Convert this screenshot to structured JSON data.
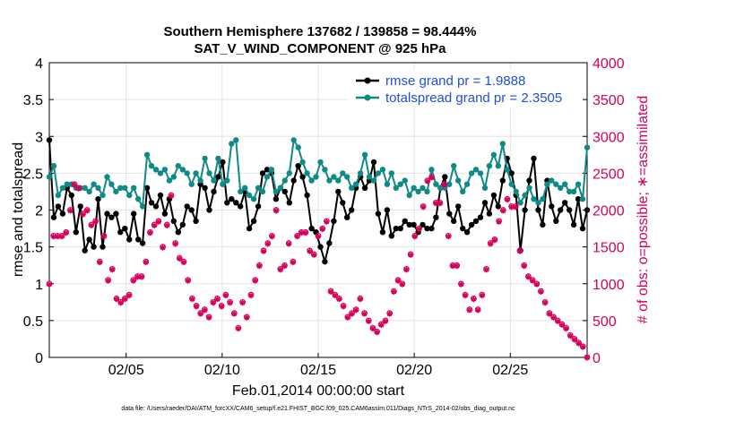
{
  "chart_data": {
    "type": "line",
    "title": "Southern Hemisphere 137682 / 139858 = 98.444%",
    "subtitle": "SAT_V_WIND_COMPONENT @ 925 hPa",
    "xlabel": "Feb.01,2014 00:00:00 start",
    "ylabel": "rmse and totalspread",
    "ylabel_right": "# of obs: o=possible; ∗=assimilated",
    "footnote": "data file: /Users/raeder/DAI/ATM_forcXX/CAM6_setup/f.e21.FHIST_BGC.f09_025.CAM6assim.011/Diags_NTrS_2014-02/obs_diag_output.nc",
    "xlim": [
      1.0,
      29.0
    ],
    "ylim": [
      0,
      4
    ],
    "ylim_right": [
      0,
      4000
    ],
    "x_ticks": [
      5,
      10,
      15,
      20,
      25
    ],
    "x_tick_labels": [
      "02/05",
      "02/10",
      "02/15",
      "02/20",
      "02/25"
    ],
    "y_ticks": [
      0,
      0.5,
      1,
      1.5,
      2,
      2.5,
      3,
      3.5,
      4
    ],
    "y_tick_labels": [
      "0",
      "0.5",
      "1",
      "1.5",
      "2",
      "2.5",
      "3",
      "3.5",
      "4"
    ],
    "y_ticks_right": [
      0,
      500,
      1000,
      1500,
      2000,
      2500,
      3000,
      3500,
      4000
    ],
    "y_tick_labels_right": [
      "0",
      "500",
      "1000",
      "1500",
      "2000",
      "2500",
      "3000",
      "3500",
      "4000"
    ],
    "grid": true,
    "legend_position": "top-right",
    "series": [
      {
        "name": "rmse grand pr = 1.9888",
        "color": "#000000",
        "axis": "left",
        "values": [
          2.95,
          1.9,
          2.05,
          1.95,
          2.3,
          2.2,
          1.7,
          2.05,
          1.45,
          1.6,
          1.5,
          2.15,
          1.5,
          1.95,
          1.9,
          1.95,
          1.7,
          1.75,
          1.6,
          1.95,
          1.6,
          1.55,
          2.3,
          2.1,
          2.05,
          2.2,
          1.95,
          2.15,
          1.85,
          1.7,
          1.8,
          2.05,
          2.0,
          1.85,
          2.35,
          2.3,
          2.0,
          2.25,
          2.45,
          2.65,
          2.1,
          2.15,
          2.1,
          2.05,
          2.25,
          1.75,
          1.85,
          2.05,
          2.5,
          2.55,
          2.5,
          2.15,
          2.3,
          2.25,
          2.1,
          2.4,
          2.6,
          2.45,
          2.2,
          1.75,
          1.7,
          1.5,
          1.3,
          1.55,
          1.85,
          2.25,
          2.1,
          1.9,
          2.0,
          2.3,
          2.45,
          2.3,
          2.4,
          2.65,
          1.95,
          1.7,
          2.0,
          1.65,
          1.75,
          1.75,
          1.85,
          1.8,
          1.8,
          1.7,
          1.8,
          1.75,
          1.75,
          1.9,
          2.3,
          2.45,
          1.95,
          1.85,
          2.05,
          1.75,
          1.7,
          1.8,
          1.85,
          1.9,
          2.1,
          1.95,
          2.2,
          2.05,
          2.4,
          2.7,
          2.5,
          2.2,
          1.45,
          2.0,
          2.4,
          2.7,
          2.0,
          1.8,
          2.4,
          2.05,
          1.85,
          2.0,
          2.1,
          2.0,
          1.8,
          2.15,
          1.75,
          2.0
        ]
      },
      {
        "name": "totalspread grand pr = 2.3505",
        "color": "#0f8a85",
        "axis": "left",
        "values": [
          2.45,
          2.6,
          2.2,
          2.3,
          2.35,
          2.35,
          2.3,
          2.3,
          2.3,
          2.25,
          2.35,
          2.3,
          2.2,
          2.45,
          2.35,
          2.25,
          2.3,
          2.3,
          2.2,
          2.3,
          2.15,
          2.05,
          2.75,
          2.6,
          2.55,
          2.5,
          2.55,
          2.4,
          2.45,
          2.6,
          2.55,
          2.5,
          2.35,
          2.5,
          2.4,
          2.7,
          2.5,
          2.4,
          2.7,
          2.35,
          2.4,
          2.9,
          2.95,
          2.25,
          2.3,
          2.2,
          2.15,
          2.3,
          2.25,
          2.45,
          2.55,
          2.25,
          2.3,
          2.4,
          2.5,
          2.95,
          2.85,
          2.65,
          2.5,
          2.4,
          2.45,
          2.65,
          2.55,
          2.4,
          2.45,
          2.4,
          2.5,
          2.45,
          2.3,
          2.35,
          2.5,
          2.75,
          2.45,
          2.4,
          2.5,
          2.55,
          2.35,
          2.5,
          2.3,
          2.35,
          2.4,
          2.2,
          2.3,
          2.25,
          2.3,
          2.25,
          2.55,
          2.35,
          2.3,
          2.3,
          2.35,
          2.6,
          2.4,
          2.25,
          2.35,
          2.5,
          2.55,
          2.5,
          2.3,
          2.6,
          2.75,
          2.6,
          2.9,
          2.55,
          2.35,
          2.25,
          2.1,
          2.2,
          2.3,
          2.15,
          2.1,
          2.15,
          2.35,
          2.4,
          2.35,
          2.3,
          2.35,
          2.25,
          2.25,
          2.35,
          2.15,
          2.85
        ]
      },
      {
        "name": "# of obs possible",
        "color": "#d6005a",
        "axis": "right",
        "marker": "o",
        "values": [
          1000,
          1650,
          1650,
          1650,
          1700,
          2000,
          2350,
          2300,
          1950,
          2000,
          1800,
          1850,
          1300,
          1650,
          1050,
          1200,
          800,
          750,
          800,
          850,
          1050,
          1100,
          1100,
          1300,
          1700,
          1800,
          1850,
          1500,
          1800,
          2200,
          1550,
          1350,
          1300,
          1050,
          800,
          700,
          600,
          650,
          550,
          750,
          800,
          700,
          850,
          750,
          600,
          400,
          750,
          550,
          850,
          1050,
          1250,
          1450,
          1550,
          1650,
          2000,
          1200,
          1250,
          1550,
          1300,
          1650,
          1700,
          1700,
          1450,
          1400,
          1650,
          1750,
          1850,
          900,
          850,
          800,
          700,
          550,
          600,
          650,
          800,
          600,
          500,
          400,
          350,
          450,
          500,
          600,
          900,
          1050,
          1000,
          1200,
          1400,
          1650,
          1750,
          2050,
          2400,
          2450,
          2100,
          2100,
          2350,
          1650,
          1250,
          1250,
          1000,
          850,
          650,
          800,
          650,
          850,
          1200,
          1550,
          1600,
          1850,
          2000,
          2150,
          2050,
          2050,
          1450,
          1250,
          1100,
          1050,
          1000,
          900,
          750,
          600,
          550,
          500,
          450,
          400,
          300,
          250,
          200,
          150,
          0
        ]
      },
      {
        "name": "# of obs assimilated",
        "color": "#d6005a",
        "axis": "right",
        "marker": "*",
        "values": [
          990,
          1640,
          1640,
          1640,
          1690,
          1990,
          2340,
          2290,
          1940,
          1990,
          1790,
          1840,
          1290,
          1640,
          1040,
          1190,
          790,
          740,
          790,
          840,
          1040,
          1090,
          1090,
          1290,
          1690,
          1790,
          1840,
          1490,
          1790,
          2190,
          1540,
          1340,
          1290,
          1040,
          790,
          690,
          590,
          640,
          540,
          740,
          790,
          690,
          840,
          740,
          590,
          390,
          740,
          540,
          840,
          1040,
          1240,
          1440,
          1540,
          1640,
          1990,
          1190,
          1240,
          1540,
          1290,
          1640,
          1690,
          1690,
          1440,
          1390,
          1640,
          1740,
          1840,
          890,
          840,
          790,
          690,
          540,
          590,
          640,
          790,
          590,
          490,
          390,
          340,
          440,
          490,
          590,
          890,
          1040,
          990,
          1190,
          1390,
          1640,
          1740,
          2040,
          2390,
          2440,
          2090,
          2090,
          2340,
          1640,
          1240,
          1240,
          990,
          840,
          640,
          790,
          640,
          840,
          1190,
          1540,
          1590,
          1840,
          1990,
          2140,
          2040,
          2040,
          1440,
          1240,
          1090,
          1040,
          990,
          890,
          740,
          590,
          540,
          490,
          440,
          390,
          290,
          240,
          190,
          140,
          0
        ]
      }
    ]
  }
}
